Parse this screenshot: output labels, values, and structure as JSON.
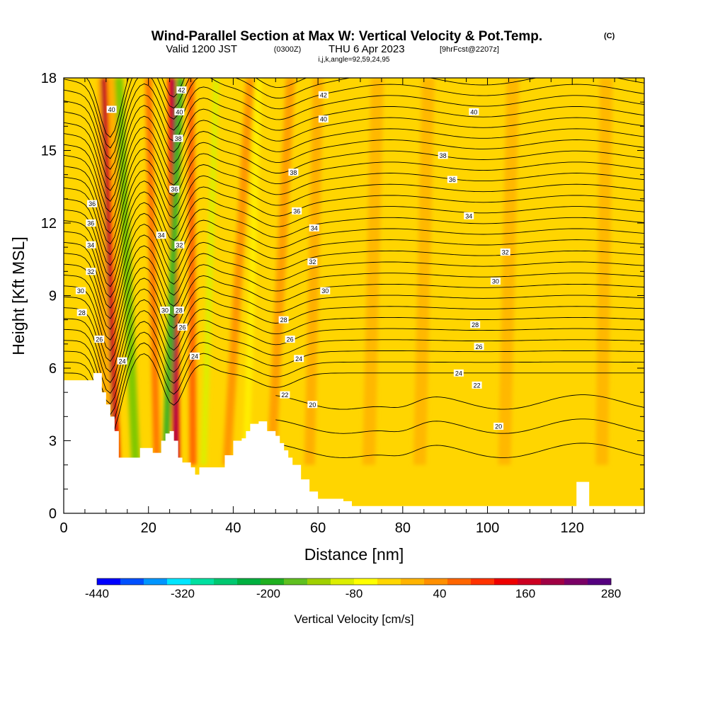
{
  "title": {
    "main": "Wind-Parallel Section at Max W: Vertical Velocity & Pot.Temp.",
    "copyright": "(C)",
    "valid_prefix": "Valid 1200 JST",
    "valid_utc": "(0300Z)",
    "valid_date": "THU 6 Apr 2023",
    "forecast": "[9hrFcst@2207z]",
    "indices": "i,j,k,angle=92,59,24,95"
  },
  "chart_data": {
    "type": "heatmap",
    "xlabel": "Distance [nm]",
    "ylabel": "Height [Kft MSL]",
    "xlim": [
      0,
      137
    ],
    "ylim": [
      0,
      18
    ],
    "x_ticks": [
      "0",
      "20",
      "40",
      "60",
      "80",
      "100",
      "120"
    ],
    "x_tick_values": [
      0,
      20,
      40,
      60,
      80,
      100,
      120
    ],
    "y_ticks": [
      "0",
      "3",
      "6",
      "9",
      "12",
      "15",
      "18"
    ],
    "y_tick_values": [
      0,
      3,
      6,
      9,
      12,
      15,
      18
    ],
    "colorbar": {
      "title": "Vertical Velocity [cm/s]",
      "labels": [
        "-440",
        "-320",
        "-200",
        "-80",
        "40",
        "160",
        "280"
      ],
      "label_values": [
        -440,
        -320,
        -200,
        -80,
        40,
        160,
        280
      ],
      "range": [
        -440,
        280
      ],
      "colors": [
        "#0000ff",
        "#0050ff",
        "#0096ff",
        "#00e6ff",
        "#00e0a0",
        "#00c870",
        "#00b040",
        "#20b020",
        "#60c020",
        "#a0d000",
        "#dcee00",
        "#ffff00",
        "#ffd700",
        "#ffb400",
        "#ff9000",
        "#ff6600",
        "#ff3300",
        "#ee0000",
        "#cc0022",
        "#a00044",
        "#7a0066",
        "#55007f"
      ]
    },
    "terrain_profile": {
      "x": [
        0,
        5,
        7,
        8,
        9,
        10,
        11,
        12,
        13,
        14,
        15,
        16,
        17,
        18,
        19,
        20,
        21,
        22,
        23,
        24,
        25,
        26,
        27,
        28,
        29,
        30,
        31,
        32,
        33,
        35,
        38,
        40,
        42,
        43,
        44,
        46,
        47,
        48,
        49,
        50,
        51,
        52,
        53,
        54,
        56,
        58,
        60,
        62,
        64,
        66,
        68,
        70,
        72,
        74,
        76,
        78,
        80,
        90,
        100,
        110,
        120,
        121,
        122,
        123,
        124,
        125,
        130,
        137
      ],
      "height": [
        5.5,
        5.5,
        5.8,
        5.8,
        5.0,
        4.5,
        4.0,
        3.4,
        2.3,
        2.3,
        2.3,
        2.3,
        2.3,
        2.7,
        2.7,
        2.7,
        2.5,
        2.5,
        3.0,
        3.3,
        3.4,
        3.0,
        2.3,
        2.1,
        2.1,
        1.9,
        1.6,
        1.9,
        1.9,
        1.9,
        2.4,
        3.0,
        3.1,
        3.4,
        3.7,
        3.8,
        3.8,
        3.4,
        3.4,
        3.2,
        2.9,
        2.6,
        2.3,
        2.0,
        1.4,
        0.9,
        0.6,
        0.6,
        0.6,
        0.5,
        0.3,
        0.3,
        0.3,
        0.3,
        0.3,
        0.3,
        0.3,
        0.3,
        0.3,
        0.3,
        0.3,
        1.3,
        1.3,
        1.3,
        0.3,
        0.3,
        0.3,
        0.3
      ]
    },
    "contour_labels": [
      {
        "text": "42",
        "x": 27.8,
        "y": 17.5
      },
      {
        "text": "40",
        "x": 11.3,
        "y": 16.7
      },
      {
        "text": "40",
        "x": 27.3,
        "y": 16.6
      },
      {
        "text": "38",
        "x": 27.0,
        "y": 15.5
      },
      {
        "text": "42",
        "x": 61.3,
        "y": 17.3
      },
      {
        "text": "40",
        "x": 61.3,
        "y": 16.3
      },
      {
        "text": "40",
        "x": 96.8,
        "y": 16.6
      },
      {
        "text": "38",
        "x": 89.5,
        "y": 14.8
      },
      {
        "text": "38",
        "x": 54.2,
        "y": 14.1
      },
      {
        "text": "36",
        "x": 26.1,
        "y": 13.4
      },
      {
        "text": "36",
        "x": 91.7,
        "y": 13.8
      },
      {
        "text": "36",
        "x": 55.0,
        "y": 12.5
      },
      {
        "text": "34",
        "x": 95.6,
        "y": 12.3
      },
      {
        "text": "34",
        "x": 59.1,
        "y": 11.8
      },
      {
        "text": "36",
        "x": 6.7,
        "y": 12.8
      },
      {
        "text": "36",
        "x": 6.4,
        "y": 12.0
      },
      {
        "text": "34",
        "x": 23.0,
        "y": 11.5
      },
      {
        "text": "32",
        "x": 27.3,
        "y": 11.1
      },
      {
        "text": "34",
        "x": 6.4,
        "y": 11.1
      },
      {
        "text": "32",
        "x": 104.2,
        "y": 10.8
      },
      {
        "text": "32",
        "x": 58.7,
        "y": 10.4
      },
      {
        "text": "32",
        "x": 6.4,
        "y": 10.0
      },
      {
        "text": "30",
        "x": 101.9,
        "y": 9.6
      },
      {
        "text": "30",
        "x": 61.7,
        "y": 9.2
      },
      {
        "text": "30",
        "x": 4.0,
        "y": 9.2
      },
      {
        "text": "30",
        "x": 23.9,
        "y": 8.4
      },
      {
        "text": "28",
        "x": 27.2,
        "y": 8.4
      },
      {
        "text": "28",
        "x": 4.3,
        "y": 8.3
      },
      {
        "text": "28",
        "x": 51.9,
        "y": 8.0
      },
      {
        "text": "28",
        "x": 97.1,
        "y": 7.8
      },
      {
        "text": "26",
        "x": 28.0,
        "y": 7.7
      },
      {
        "text": "26",
        "x": 8.4,
        "y": 7.2
      },
      {
        "text": "26",
        "x": 53.4,
        "y": 7.2
      },
      {
        "text": "26",
        "x": 98.0,
        "y": 6.9
      },
      {
        "text": "24",
        "x": 30.9,
        "y": 6.5
      },
      {
        "text": "24",
        "x": 55.5,
        "y": 6.4
      },
      {
        "text": "24",
        "x": 13.8,
        "y": 6.3
      },
      {
        "text": "24",
        "x": 93.2,
        "y": 5.8
      },
      {
        "text": "22",
        "x": 97.5,
        "y": 5.3
      },
      {
        "text": "22",
        "x": 52.2,
        "y": 4.9
      },
      {
        "text": "20",
        "x": 58.7,
        "y": 4.5
      },
      {
        "text": "20",
        "x": 102.6,
        "y": 3.6
      }
    ]
  }
}
